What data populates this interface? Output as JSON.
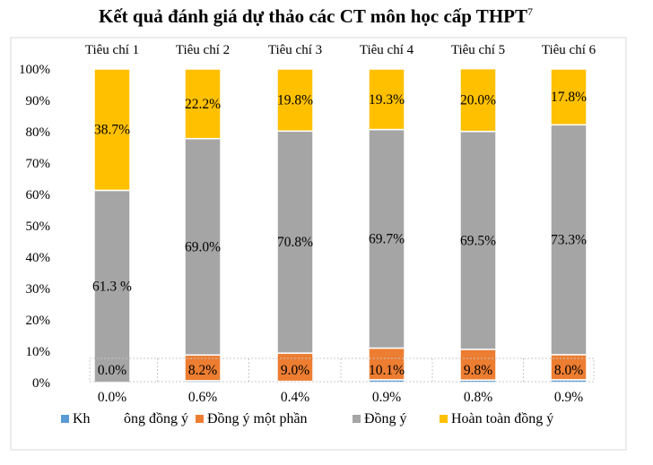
{
  "chart_data": {
    "type": "bar",
    "stacked": true,
    "percent": true,
    "title": "Kết quả đánh giá dự thảo các CT môn học cấp THPT",
    "title_superscript": "7",
    "categories": [
      "Tiêu chí 1",
      "Tiêu chí 2",
      "Tiêu chí 3",
      "Tiêu chí 4",
      "Tiêu chí 5",
      "Tiêu chí 6"
    ],
    "ylim": [
      0,
      100
    ],
    "y_ticks": [
      "0%",
      "10%",
      "20%",
      "30%",
      "40%",
      "50%",
      "60%",
      "70%",
      "80%",
      "90%",
      "100%"
    ],
    "grid": false,
    "legend_position": "bottom",
    "series": [
      {
        "name": "Không đồng ý",
        "color": "#5B9BD5",
        "values": [
          0.0,
          0.6,
          0.4,
          0.9,
          0.8,
          0.9
        ],
        "labels": [
          "0.0%",
          "0.6%",
          "0.4%",
          "0.9%",
          "0.8%",
          "0.9%"
        ]
      },
      {
        "name": "Đồng ý một phần",
        "color": "#ED7D31",
        "values": [
          0.0,
          8.2,
          9.0,
          10.1,
          9.8,
          8.0
        ],
        "labels": [
          "0.0%",
          "8.2%",
          "9.0%",
          "10.1%",
          "9.8%",
          "8.0%"
        ]
      },
      {
        "name": "Đồng ý",
        "color": "#A5A5A5",
        "values": [
          61.3,
          69.0,
          70.8,
          69.7,
          69.5,
          73.3
        ],
        "labels": [
          "61.3 %",
          "69.0%",
          "70.8%",
          "69.7%",
          "69.5%",
          "73.3%"
        ]
      },
      {
        "name": "Hoàn toàn đồng ý",
        "color": "#FFC000",
        "values": [
          38.7,
          22.2,
          19.8,
          19.3,
          20.0,
          17.8
        ],
        "labels": [
          "38.7%",
          "22.2%",
          "19.8%",
          "19.3%",
          "20.0%",
          "17.8%"
        ]
      }
    ],
    "legend_items": [
      {
        "text": "Kh",
        "color": "#5B9BD5"
      },
      {
        "text": "ông đồng ý",
        "color": null
      },
      {
        "text": "Đồng ý một phần",
        "color": "#ED7D31"
      },
      {
        "text": "Đồng ý",
        "color": "#A5A5A5"
      },
      {
        "text": "Hoàn toàn đồng ý",
        "color": "#FFC000"
      }
    ]
  }
}
